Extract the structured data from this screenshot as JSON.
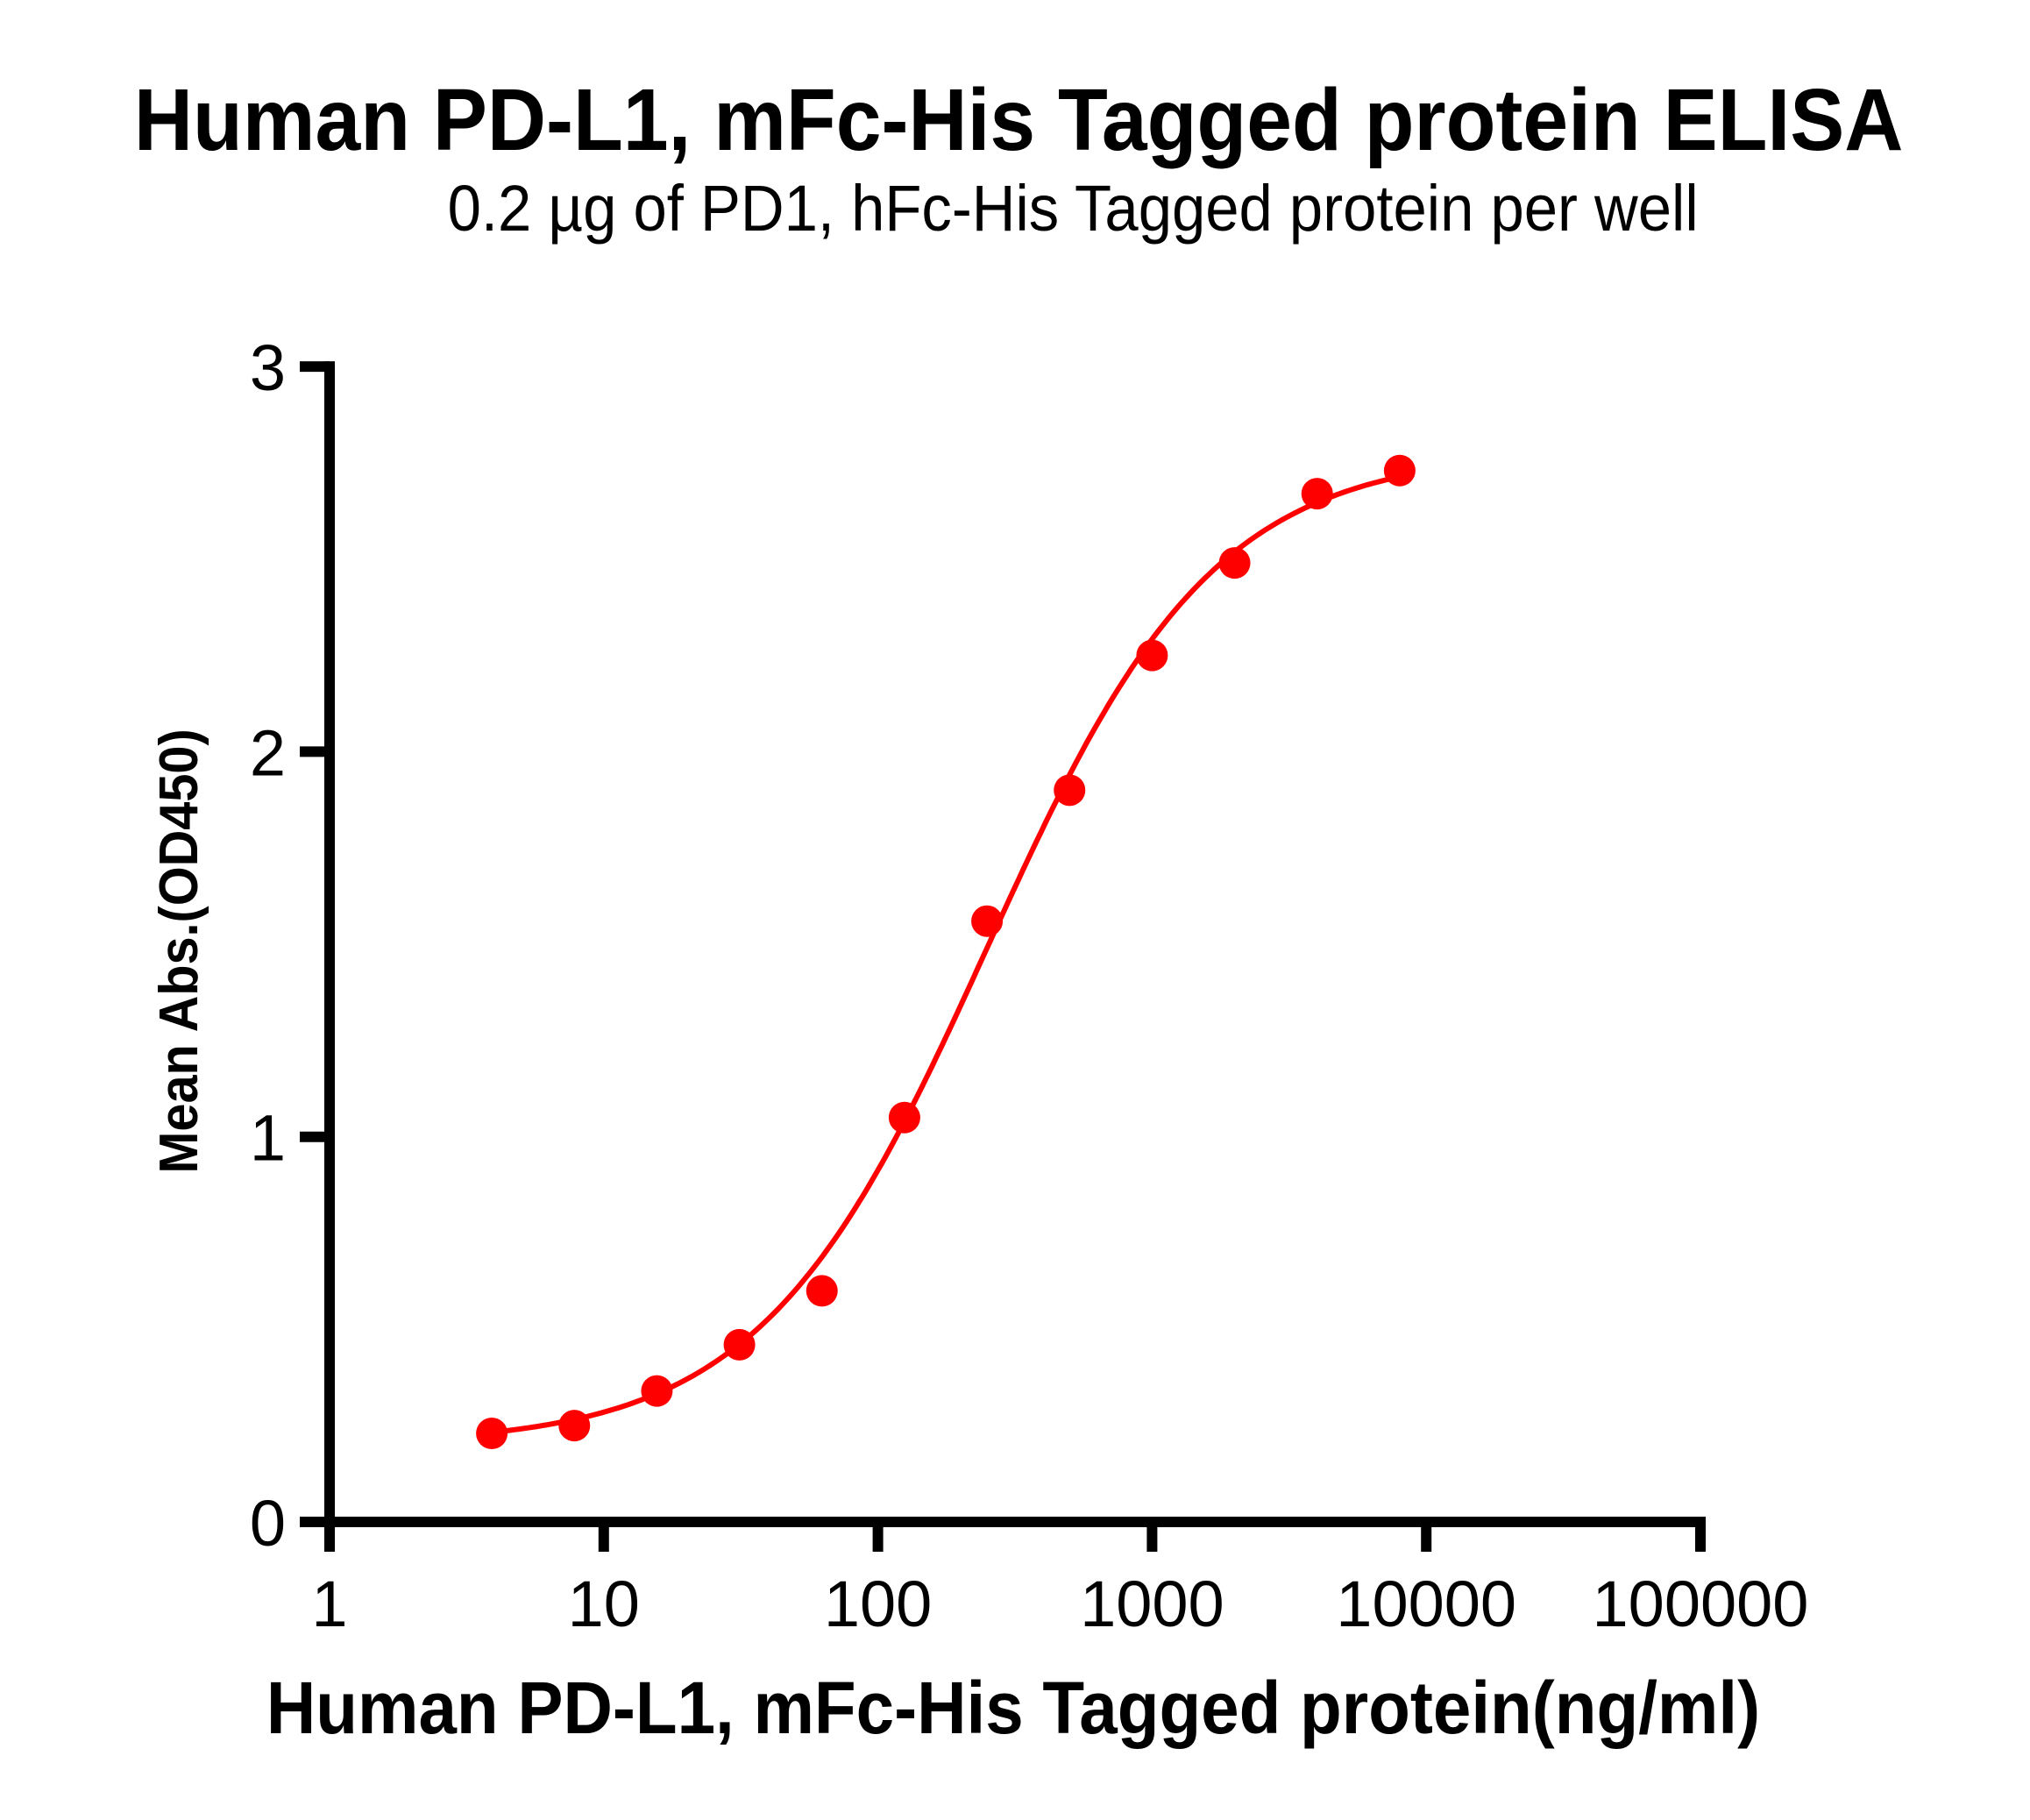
{
  "title": "Human PD-L1, mFc-His Tagged protein ELISA",
  "subtitle": "0.2 µg of PD1, hFc-His Tagged protein per well",
  "chart_data": {
    "type": "scatter",
    "title": "Human PD-L1, mFc-His Tagged protein ELISA",
    "subtitle": "0.2 µg of PD1, hFc-His Tagged protein per well",
    "xlabel": "Human PD-L1, mFc-His Tagged protein(ng/ml)",
    "ylabel": "Mean Abs.(OD450)",
    "xscale": "log",
    "xlim": [
      1,
      100000
    ],
    "ylim": [
      0,
      3
    ],
    "xticks": [
      1,
      10,
      100,
      1000,
      10000,
      100000
    ],
    "xtick_labels": [
      "1",
      "10",
      "100",
      "1000",
      "10000",
      "100000"
    ],
    "yticks": [
      0,
      1,
      2,
      3
    ],
    "ytick_labels": [
      "0",
      "1",
      "2",
      "3"
    ],
    "grid": false,
    "legend": null,
    "series": [
      {
        "name": "Human PD-L1, mFc-His Tagged protein",
        "color": "#FF0000",
        "marker": "circle",
        "x": [
          3.90625,
          7.8125,
          15.625,
          31.25,
          62.5,
          125,
          250,
          500,
          1000,
          2000,
          4000,
          8000
        ],
        "y": [
          0.23,
          0.25,
          0.34,
          0.46,
          0.6,
          1.05,
          1.56,
          1.9,
          2.25,
          2.49,
          2.67,
          2.73
        ],
        "fit": {
          "type": "4PL sigmoidal curve",
          "bottom": 0.2,
          "top": 2.78,
          "ec50": 250,
          "hill": 1.05
        }
      }
    ]
  }
}
